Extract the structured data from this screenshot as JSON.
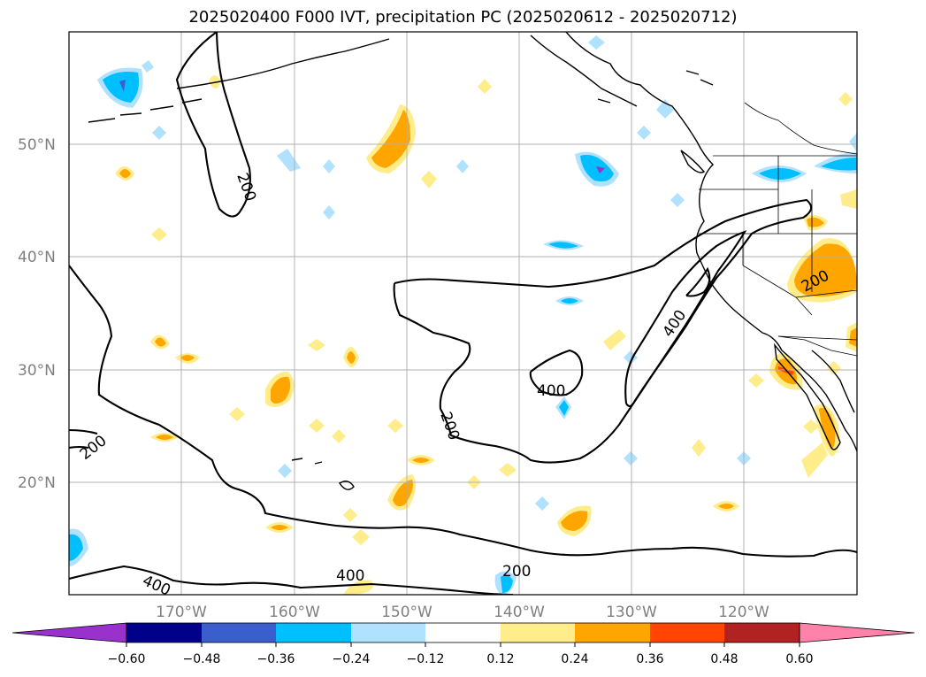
{
  "title": "2025020400 F000 IVT, precipitation PC (2025020612 - 2025020712)",
  "map": {
    "lat_labels": [
      "50°N",
      "40°N",
      "30°N",
      "20°N"
    ],
    "lon_labels": [
      "170°W",
      "160°W",
      "150°W",
      "140°W",
      "130°W",
      "120°W"
    ],
    "gridlines": true,
    "ivt_contour_labels": [
      "200",
      "200",
      "200",
      "200",
      "400",
      "400",
      "400",
      "400",
      "200"
    ]
  },
  "colorbar": {
    "ticks": [
      "−0.60",
      "−0.48",
      "−0.36",
      "−0.24",
      "−0.12",
      "0.12",
      "0.24",
      "0.36",
      "0.48",
      "0.60"
    ],
    "colors": [
      "#9932cc",
      "#00008b",
      "#3a5fcd",
      "#00bfff",
      "#b0e2ff",
      "#ffffff",
      "#ffec8b",
      "#ffa500",
      "#ff4500",
      "#b22222",
      "#ff82ab"
    ],
    "extend": "both"
  },
  "colors": {
    "neg_light": "#b0e2ff",
    "neg_mid": "#00bfff",
    "neg_strong": "#3a5fcd",
    "neg_extreme": "#9932cc",
    "pos_light": "#ffec8b",
    "pos_mid": "#ffa500",
    "pos_strong": "#ff4500"
  }
}
